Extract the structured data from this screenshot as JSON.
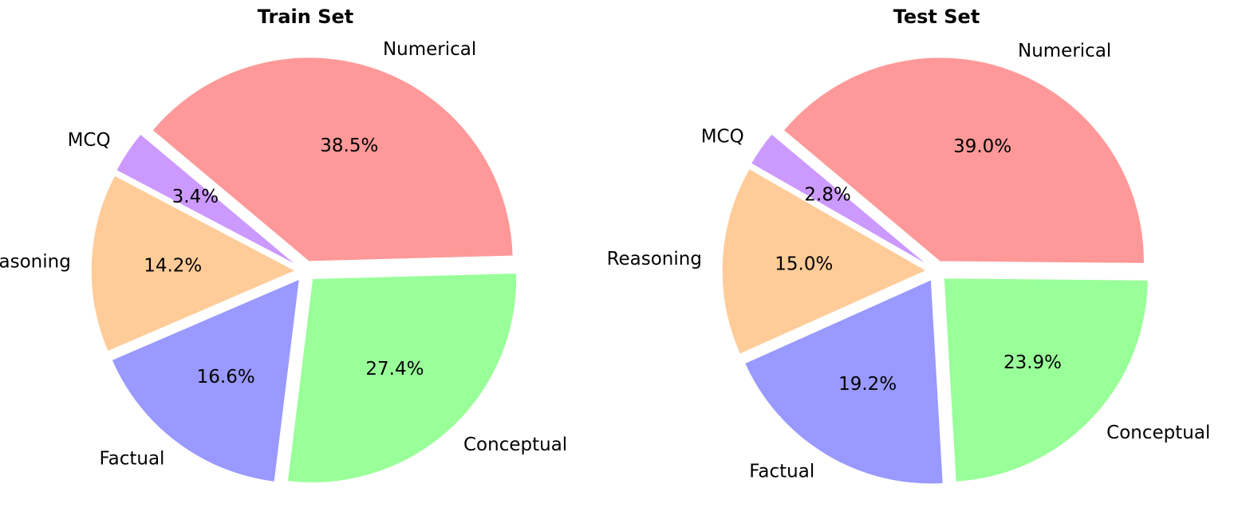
{
  "chart_data": [
    {
      "type": "pie",
      "title": "Train Set",
      "categories": [
        "Numerical",
        "Conceptual",
        "Factual",
        "Reasoning",
        "MCQ"
      ],
      "values": [
        38.5,
        27.4,
        16.6,
        14.2,
        3.4
      ],
      "value_labels": [
        "38.5%",
        "27.4%",
        "16.6%",
        "14.2%",
        "3.4%"
      ],
      "colors": [
        "#ff9999",
        "#99ff99",
        "#9999ff",
        "#ffcc99",
        "#cc99ff"
      ],
      "start_angle_deg": 140,
      "direction": "clockwise",
      "exploded": true
    },
    {
      "type": "pie",
      "title": "Test Set",
      "categories": [
        "Numerical",
        "Conceptual",
        "Factual",
        "Reasoning",
        "MCQ"
      ],
      "values": [
        39.0,
        23.9,
        19.2,
        15.0,
        2.8
      ],
      "value_labels": [
        "39.0%",
        "23.9%",
        "19.2%",
        "15.0%",
        "2.8%"
      ],
      "colors": [
        "#ff9999",
        "#99ff99",
        "#9999ff",
        "#ffcc99",
        "#cc99ff"
      ],
      "start_angle_deg": 140,
      "direction": "clockwise",
      "exploded": true
    }
  ]
}
